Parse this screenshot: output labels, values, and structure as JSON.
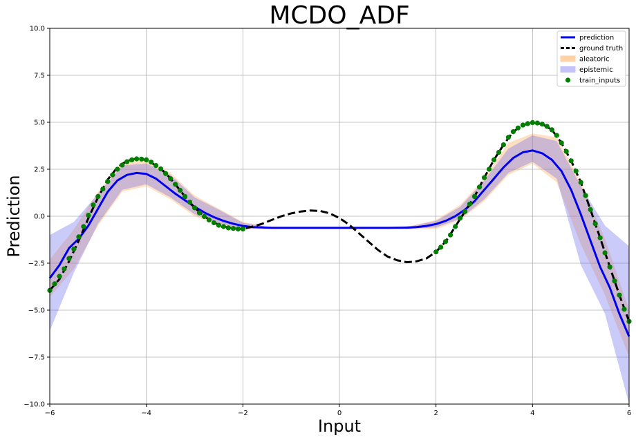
{
  "chart_data": {
    "type": "line",
    "title": "MCDO_ADF",
    "xlabel": "Input",
    "ylabel": "Prediction",
    "xlim": [
      -6,
      6
    ],
    "ylim": [
      -10,
      10
    ],
    "grid": true,
    "legend_position": "top-right",
    "xticks": [
      -6,
      -4,
      -2,
      0,
      2,
      4,
      6
    ],
    "xtick_labels": [
      "−6",
      "−4",
      "−2",
      "0",
      "2",
      "4",
      "6"
    ],
    "yticks": [
      -10,
      -7.5,
      -5,
      -2.5,
      0,
      2.5,
      5,
      7.5,
      10
    ],
    "ytick_labels": [
      "−10.0",
      "−7.5",
      "−5.0",
      "−2.5",
      "0.0",
      "2.5",
      "5.0",
      "7.5",
      "10.0"
    ],
    "legend": [
      {
        "label": "prediction",
        "kind": "line",
        "color": "#0000ee"
      },
      {
        "label": "ground truth",
        "kind": "dashed",
        "color": "#000000"
      },
      {
        "label": "aleatoric",
        "kind": "patch",
        "color": "#ffd3a8"
      },
      {
        "label": "epistemic",
        "kind": "patch",
        "color": "#c3c3f7"
      },
      {
        "label": "train_inputs",
        "kind": "dot",
        "color": "#007f00"
      }
    ],
    "colors": {
      "prediction": "#0000ee",
      "ground_truth": "#000000",
      "aleatoric": "#ffa54f",
      "epistemic": "#6a6af0",
      "train_inputs": "#007f00",
      "grid": "#b0b0b0"
    },
    "ground_truth": {
      "x": [
        -6.0,
        -5.8,
        -5.6,
        -5.4,
        -5.2,
        -5.0,
        -4.8,
        -4.6,
        -4.4,
        -4.2,
        -4.0,
        -3.8,
        -3.6,
        -3.4,
        -3.2,
        -3.0,
        -2.8,
        -2.6,
        -2.4,
        -2.2,
        -2.0,
        -1.8,
        -1.6,
        -1.4,
        -1.2,
        -1.0,
        -0.8,
        -0.6,
        -0.4,
        -0.2,
        0.0,
        0.2,
        0.4,
        0.6,
        0.8,
        1.0,
        1.2,
        1.4,
        1.6,
        1.8,
        2.0,
        2.2,
        2.4,
        2.6,
        2.8,
        3.0,
        3.2,
        3.4,
        3.6,
        3.8,
        4.0,
        4.2,
        4.4,
        4.6,
        4.8,
        5.0,
        5.2,
        5.4,
        5.6,
        5.8,
        6.0
      ],
      "y": [
        -3.95,
        -3.35,
        -2.4,
        -1.3,
        -0.1,
        1.0,
        1.95,
        2.6,
        2.95,
        3.05,
        3.0,
        2.7,
        2.3,
        1.7,
        1.05,
        0.45,
        0.0,
        -0.35,
        -0.55,
        -0.65,
        -0.68,
        -0.55,
        -0.4,
        -0.2,
        0.0,
        0.15,
        0.25,
        0.3,
        0.28,
        0.15,
        -0.1,
        -0.45,
        -0.9,
        -1.35,
        -1.8,
        -2.15,
        -2.35,
        -2.45,
        -2.4,
        -2.25,
        -1.9,
        -1.35,
        -0.55,
        0.25,
        1.05,
        2.05,
        3.0,
        3.8,
        4.5,
        4.85,
        4.98,
        4.9,
        4.6,
        3.9,
        2.95,
        1.8,
        0.35,
        -1.15,
        -2.7,
        -4.2,
        -5.6
      ]
    },
    "prediction": {
      "x": [
        -6.0,
        -5.8,
        -5.6,
        -5.4,
        -5.2,
        -5.0,
        -4.8,
        -4.6,
        -4.4,
        -4.2,
        -4.0,
        -3.8,
        -3.6,
        -3.4,
        -3.2,
        -3.0,
        -2.8,
        -2.6,
        -2.4,
        -2.2,
        -2.0,
        -1.8,
        -1.6,
        -1.4,
        -1.0,
        0.0,
        1.0,
        1.4,
        1.6,
        1.8,
        2.0,
        2.2,
        2.4,
        2.6,
        2.8,
        3.0,
        3.2,
        3.4,
        3.6,
        3.8,
        4.0,
        4.2,
        4.4,
        4.6,
        4.8,
        5.0,
        5.2,
        5.4,
        5.6,
        5.8,
        6.0
      ],
      "y": [
        -3.3,
        -2.6,
        -1.7,
        -1.2,
        -0.5,
        0.4,
        1.3,
        1.9,
        2.2,
        2.3,
        2.25,
        2.0,
        1.6,
        1.2,
        0.85,
        0.5,
        0.2,
        -0.05,
        -0.25,
        -0.4,
        -0.52,
        -0.58,
        -0.6,
        -0.62,
        -0.62,
        -0.62,
        -0.62,
        -0.61,
        -0.58,
        -0.52,
        -0.42,
        -0.25,
        0.0,
        0.35,
        0.8,
        1.4,
        2.0,
        2.6,
        3.1,
        3.4,
        3.5,
        3.35,
        3.0,
        2.4,
        1.4,
        0.1,
        -1.3,
        -2.7,
        -3.8,
        -5.2,
        -6.4
      ]
    },
    "aleatoric": {
      "x": [
        -6.0,
        -5.5,
        -5.0,
        -4.5,
        -4.0,
        -3.5,
        -3.0,
        -2.5,
        -2.0,
        -1.5,
        -1.0,
        1.0,
        1.5,
        2.0,
        2.5,
        3.0,
        3.5,
        4.0,
        4.5,
        5.0,
        5.5,
        6.0
      ],
      "lower": [
        -4.3,
        -2.8,
        -0.5,
        1.3,
        1.6,
        0.9,
        0.0,
        -0.5,
        -0.7,
        -0.68,
        -0.65,
        -0.65,
        -0.7,
        -0.7,
        -0.2,
        0.8,
        2.2,
        2.8,
        1.8,
        -1.5,
        -4.2,
        -7.5
      ],
      "upper": [
        -2.3,
        -0.7,
        1.3,
        2.9,
        3.0,
        2.3,
        1.1,
        0.4,
        -0.3,
        -0.55,
        -0.58,
        -0.58,
        -0.5,
        -0.2,
        0.6,
        2.0,
        3.9,
        4.4,
        4.2,
        1.8,
        -1.2,
        -5.0
      ]
    },
    "epistemic": {
      "x": [
        -6.0,
        -5.5,
        -5.0,
        -4.5,
        -4.0,
        -3.5,
        -3.0,
        -2.5,
        -2.0,
        -1.5,
        -1.0,
        1.0,
        1.5,
        2.0,
        2.5,
        3.0,
        3.5,
        4.0,
        4.5,
        5.0,
        5.5,
        6.0
      ],
      "lower": [
        -6.1,
        -3.0,
        -0.4,
        1.4,
        1.7,
        1.0,
        0.1,
        -0.4,
        -0.65,
        -0.66,
        -0.64,
        -0.64,
        -0.66,
        -0.6,
        -0.15,
        0.9,
        2.3,
        2.9,
        2.0,
        -2.6,
        -5.2,
        -10.0
      ],
      "upper": [
        -1.0,
        -0.3,
        1.2,
        2.7,
        2.8,
        2.2,
        1.0,
        0.35,
        -0.35,
        -0.56,
        -0.6,
        -0.6,
        -0.52,
        -0.25,
        0.5,
        1.9,
        3.6,
        4.3,
        4.0,
        1.6,
        -0.5,
        -1.6
      ]
    },
    "train_inputs": {
      "x": [
        -6.0,
        -5.9,
        -5.8,
        -5.7,
        -5.6,
        -5.5,
        -5.4,
        -5.3,
        -5.2,
        -5.1,
        -5.0,
        -4.9,
        -4.8,
        -4.7,
        -4.6,
        -4.5,
        -4.4,
        -4.3,
        -4.2,
        -4.1,
        -4.0,
        -3.9,
        -3.8,
        -3.7,
        -3.6,
        -3.5,
        -3.4,
        -3.3,
        -3.2,
        -3.1,
        -3.0,
        -2.9,
        -2.8,
        -2.7,
        -2.6,
        -2.5,
        -2.4,
        -2.3,
        -2.2,
        -2.1,
        -2.0,
        2.0,
        2.1,
        2.2,
        2.3,
        2.4,
        2.5,
        2.6,
        2.7,
        2.8,
        2.9,
        3.0,
        3.1,
        3.2,
        3.3,
        3.4,
        3.5,
        3.6,
        3.7,
        3.8,
        3.9,
        4.0,
        4.1,
        4.2,
        4.3,
        4.4,
        4.5,
        4.6,
        4.7,
        4.8,
        4.9,
        5.0,
        5.1,
        5.2,
        5.3,
        5.4,
        5.5,
        5.6,
        5.7,
        5.8,
        5.9,
        6.0
      ],
      "y": [
        -3.95,
        -3.6,
        -3.2,
        -2.8,
        -2.25,
        -1.75,
        -1.1,
        -0.55,
        0.05,
        0.6,
        1.05,
        1.45,
        1.85,
        2.2,
        2.5,
        2.72,
        2.9,
        3.0,
        3.05,
        3.04,
        3.0,
        2.88,
        2.7,
        2.52,
        2.27,
        2.0,
        1.7,
        1.38,
        1.05,
        0.75,
        0.45,
        0.18,
        -0.02,
        -0.2,
        -0.35,
        -0.48,
        -0.55,
        -0.62,
        -0.65,
        -0.68,
        -0.68,
        -1.9,
        -1.65,
        -1.35,
        -1.0,
        -0.55,
        -0.1,
        0.25,
        0.65,
        1.05,
        1.55,
        2.05,
        2.5,
        3.0,
        3.4,
        3.8,
        4.2,
        4.5,
        4.7,
        4.85,
        4.93,
        4.98,
        4.96,
        4.9,
        4.78,
        4.6,
        4.3,
        3.9,
        3.45,
        2.95,
        2.4,
        1.8,
        1.1,
        0.35,
        -0.4,
        -1.15,
        -1.95,
        -2.7,
        -3.45,
        -4.2,
        -4.95,
        -5.6
      ]
    }
  }
}
